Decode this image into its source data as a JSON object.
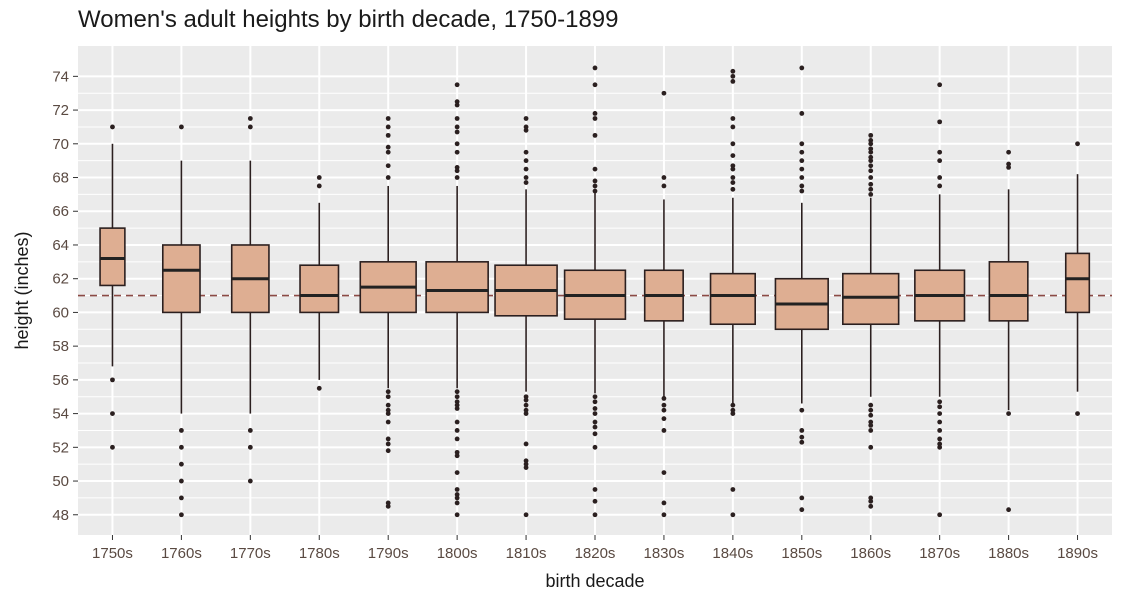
{
  "chart_data": {
    "type": "box",
    "title": "Women's adult heights by birth decade, 1750-1899",
    "xlabel": "birth decade",
    "ylabel": "height (inches)",
    "ylim": [
      46.8,
      75.8
    ],
    "yticks": [
      48,
      50,
      52,
      54,
      56,
      58,
      60,
      62,
      64,
      66,
      68,
      70,
      72,
      74
    ],
    "grid": true,
    "legend": "none",
    "reference_line": {
      "y": 61.0,
      "style": "dashed"
    },
    "colors": {
      "panel": "#ebebeb",
      "grid": "#ffffff",
      "box_fill": "#deae92",
      "box_line": "#2b1f1f",
      "median": "#222222",
      "ref_line": "#8b4a45",
      "points": "#2b2020"
    },
    "categories": [
      "1750s",
      "1760s",
      "1770s",
      "1780s",
      "1790s",
      "1800s",
      "1810s",
      "1820s",
      "1830s",
      "1840s",
      "1850s",
      "1860s",
      "1870s",
      "1880s",
      "1890s"
    ],
    "boxes": [
      {
        "q1": 61.6,
        "median": 63.2,
        "q3": 65.0,
        "whisker_low": 56.8,
        "whisker_high": 70.0,
        "rel_width": 0.4,
        "outliers": [
          71,
          56,
          54,
          52
        ]
      },
      {
        "q1": 60.0,
        "median": 62.5,
        "q3": 64.0,
        "whisker_low": 54.0,
        "whisker_high": 69.0,
        "rel_width": 0.6,
        "outliers": [
          71,
          53,
          52,
          51,
          50,
          49,
          48
        ]
      },
      {
        "q1": 60.0,
        "median": 62.0,
        "q3": 64.0,
        "whisker_low": 54.0,
        "whisker_high": 69.0,
        "rel_width": 0.6,
        "outliers": [
          71.5,
          71,
          53,
          52,
          50
        ]
      },
      {
        "q1": 60.0,
        "median": 61.0,
        "q3": 62.8,
        "whisker_low": 56.0,
        "whisker_high": 66.5,
        "rel_width": 0.62,
        "outliers": [
          68,
          67.5,
          55.5
        ]
      },
      {
        "q1": 60.0,
        "median": 61.5,
        "q3": 63.0,
        "whisker_low": 55.5,
        "whisker_high": 67.5,
        "rel_width": 0.9,
        "outliers": [
          71.5,
          71,
          70.5,
          69.8,
          69.5,
          68.7,
          68,
          55.3,
          55,
          54.5,
          54.2,
          54,
          53.5,
          52.5,
          52.2,
          51.8,
          48.7,
          48.5
        ]
      },
      {
        "q1": 60.0,
        "median": 61.3,
        "q3": 63.0,
        "whisker_low": 55.5,
        "whisker_high": 67.5,
        "rel_width": 1.0,
        "outliers": [
          73.5,
          72.5,
          72.3,
          71.5,
          71,
          70.7,
          70,
          69.5,
          68.6,
          68.4,
          68,
          55.3,
          55,
          54.7,
          54.5,
          54.3,
          53.5,
          53,
          52.5,
          51.7,
          51.5,
          50.5,
          49.5,
          49.2,
          49,
          48.7,
          48
        ]
      },
      {
        "q1": 59.8,
        "median": 61.3,
        "q3": 62.8,
        "whisker_low": 55.3,
        "whisker_high": 67.3,
        "rel_width": 1.0,
        "outliers": [
          71.5,
          71,
          70.8,
          69.5,
          69,
          68.5,
          68,
          67.7,
          55,
          54.8,
          54.5,
          54.2,
          54,
          52.2,
          51.2,
          51,
          50.8,
          48
        ]
      },
      {
        "q1": 59.6,
        "median": 61.0,
        "q3": 62.5,
        "whisker_low": 55.2,
        "whisker_high": 67.2,
        "rel_width": 0.98,
        "outliers": [
          74.5,
          73.5,
          71.8,
          71.5,
          70.5,
          68.5,
          67.8,
          67.5,
          67.2,
          55,
          54.7,
          54.3,
          54,
          53.5,
          53.2,
          52.8,
          52,
          49.5,
          48.8,
          48
        ]
      },
      {
        "q1": 59.5,
        "median": 61.0,
        "q3": 62.5,
        "whisker_low": 55.0,
        "whisker_high": 66.7,
        "rel_width": 0.62,
        "outliers": [
          73,
          68,
          67.5,
          54.9,
          54.5,
          54.2,
          53.7,
          53,
          50.5,
          48.7,
          48
        ]
      },
      {
        "q1": 59.3,
        "median": 61.0,
        "q3": 62.3,
        "whisker_low": 54.5,
        "whisker_high": 66.8,
        "rel_width": 0.72,
        "outliers": [
          74.3,
          74,
          73.7,
          71.5,
          71,
          70,
          69.3,
          68.7,
          68.5,
          68,
          67.7,
          67.3,
          54.5,
          54.2,
          54,
          49.5,
          48
        ]
      },
      {
        "q1": 59.0,
        "median": 60.5,
        "q3": 62.0,
        "whisker_low": 54.6,
        "whisker_high": 66.5,
        "rel_width": 0.85,
        "outliers": [
          74.5,
          71.8,
          70,
          69.5,
          69,
          68.5,
          68,
          67.5,
          67.2,
          54.2,
          53,
          52.6,
          52.3,
          49,
          48.3
        ]
      },
      {
        "q1": 59.3,
        "median": 60.9,
        "q3": 62.3,
        "whisker_low": 55.0,
        "whisker_high": 66.8,
        "rel_width": 0.9,
        "outliers": [
          70.5,
          70.2,
          70,
          69.7,
          69.5,
          69.2,
          69,
          68.7,
          68.4,
          68,
          67.6,
          67.3,
          67,
          54.5,
          54.2,
          53.9,
          53.5,
          53.3,
          53,
          52,
          49,
          48.8,
          48.5
        ]
      },
      {
        "q1": 59.5,
        "median": 61.0,
        "q3": 62.5,
        "whisker_low": 55.0,
        "whisker_high": 67.0,
        "rel_width": 0.8,
        "outliers": [
          73.5,
          71.3,
          69.5,
          69,
          68,
          67.5,
          54.7,
          54.4,
          54,
          53.5,
          53,
          52.5,
          52.2,
          52,
          48
        ]
      },
      {
        "q1": 59.5,
        "median": 61.0,
        "q3": 63.0,
        "whisker_low": 54.2,
        "whisker_high": 67.3,
        "rel_width": 0.62,
        "outliers": [
          69.5,
          68.8,
          68.6,
          54,
          48.3
        ]
      },
      {
        "q1": 60.0,
        "median": 62.0,
        "q3": 63.5,
        "whisker_low": 55.3,
        "whisker_high": 68.2,
        "rel_width": 0.38,
        "outliers": [
          70,
          54
        ]
      }
    ]
  }
}
